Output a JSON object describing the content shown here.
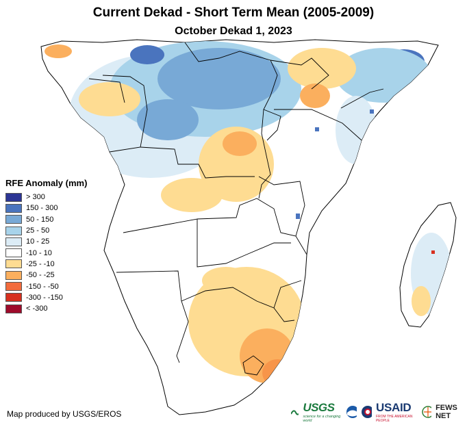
{
  "header": {
    "title": "Current Dekad - Short Term Mean (2005-2009)",
    "subtitle": "October Dekad 1, 2023"
  },
  "legend": {
    "title": "RFE Anomaly (mm)",
    "items": [
      {
        "label": "> 300",
        "color": "#2c3594"
      },
      {
        "label": "150 - 300",
        "color": "#4a74be"
      },
      {
        "label": "50 - 150",
        "color": "#78a9d6"
      },
      {
        "label": "25 - 50",
        "color": "#a8d3ea"
      },
      {
        "label": "10 - 25",
        "color": "#dcecf6"
      },
      {
        "label": "-10 - 10",
        "color": "#ffffff"
      },
      {
        "label": "-25 - -10",
        "color": "#fedc92"
      },
      {
        "label": "-50 - -25",
        "color": "#fbaf5e"
      },
      {
        "label": "-150 - -50",
        "color": "#f26b3d"
      },
      {
        "label": "-300 - -150",
        "color": "#d7301f"
      },
      {
        "label": "< -300",
        "color": "#9e0b2b"
      }
    ]
  },
  "footer": {
    "credit": "Map produced by USGS/EROS",
    "logos": {
      "usgs": "USGS",
      "usgs_tagline": "science for a changing world",
      "usaid": "USAID",
      "usaid_tagline": "FROM THE AMERICAN PEOPLE",
      "fews": "FEWS NET"
    }
  },
  "colors": {
    "land": "#ffffff",
    "border": "#000000",
    "wet_strong": "#4a74be",
    "wet_medium": "#78a9d6",
    "wet_light": "#a8d3ea",
    "wet_faint": "#dcecf6",
    "dry_light": "#fedc92",
    "dry_medium": "#fbaf5e",
    "dry_strong": "#f26b3d"
  }
}
